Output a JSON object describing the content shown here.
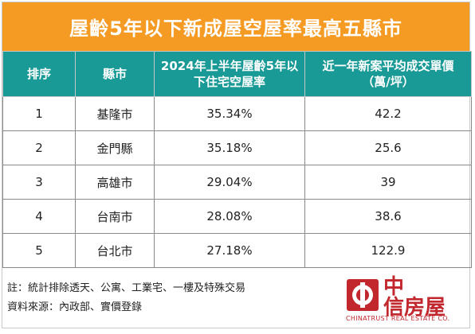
{
  "title": "屋齡5年以下新成屋空屋率最高五縣市",
  "columns": [
    "排序",
    "縣市",
    "2024年上半年屋齡5年以下住宅空屋率",
    "近一年新案平均成交單價（萬/坪）"
  ],
  "rows": [
    {
      "rank": "1",
      "city": "基隆市",
      "vacancy": "35.34%",
      "price": "42.2"
    },
    {
      "rank": "2",
      "city": "金門縣",
      "vacancy": "35.18%",
      "price": "25.6"
    },
    {
      "rank": "3",
      "city": "高雄市",
      "vacancy": "29.04%",
      "price": "39"
    },
    {
      "rank": "4",
      "city": "台南市",
      "vacancy": "28.08%",
      "price": "38.6"
    },
    {
      "rank": "5",
      "city": "台北市",
      "vacancy": "27.18%",
      "price": "122.9"
    }
  ],
  "notes": {
    "note": "註：統計排除透天、公寓、工業宅、一樓及特殊交易",
    "source": "資料來源：內政部、實價登錄"
  },
  "logo": {
    "line1": "中",
    "line2": "信房屋",
    "english": "CHINATRUST REAL ESTATE CO.",
    "icon": "chinatrust-logo-icon"
  },
  "colors": {
    "title_bg": "#f59a23",
    "header_bg": "#1a9a97",
    "brand": "#c1272d"
  }
}
